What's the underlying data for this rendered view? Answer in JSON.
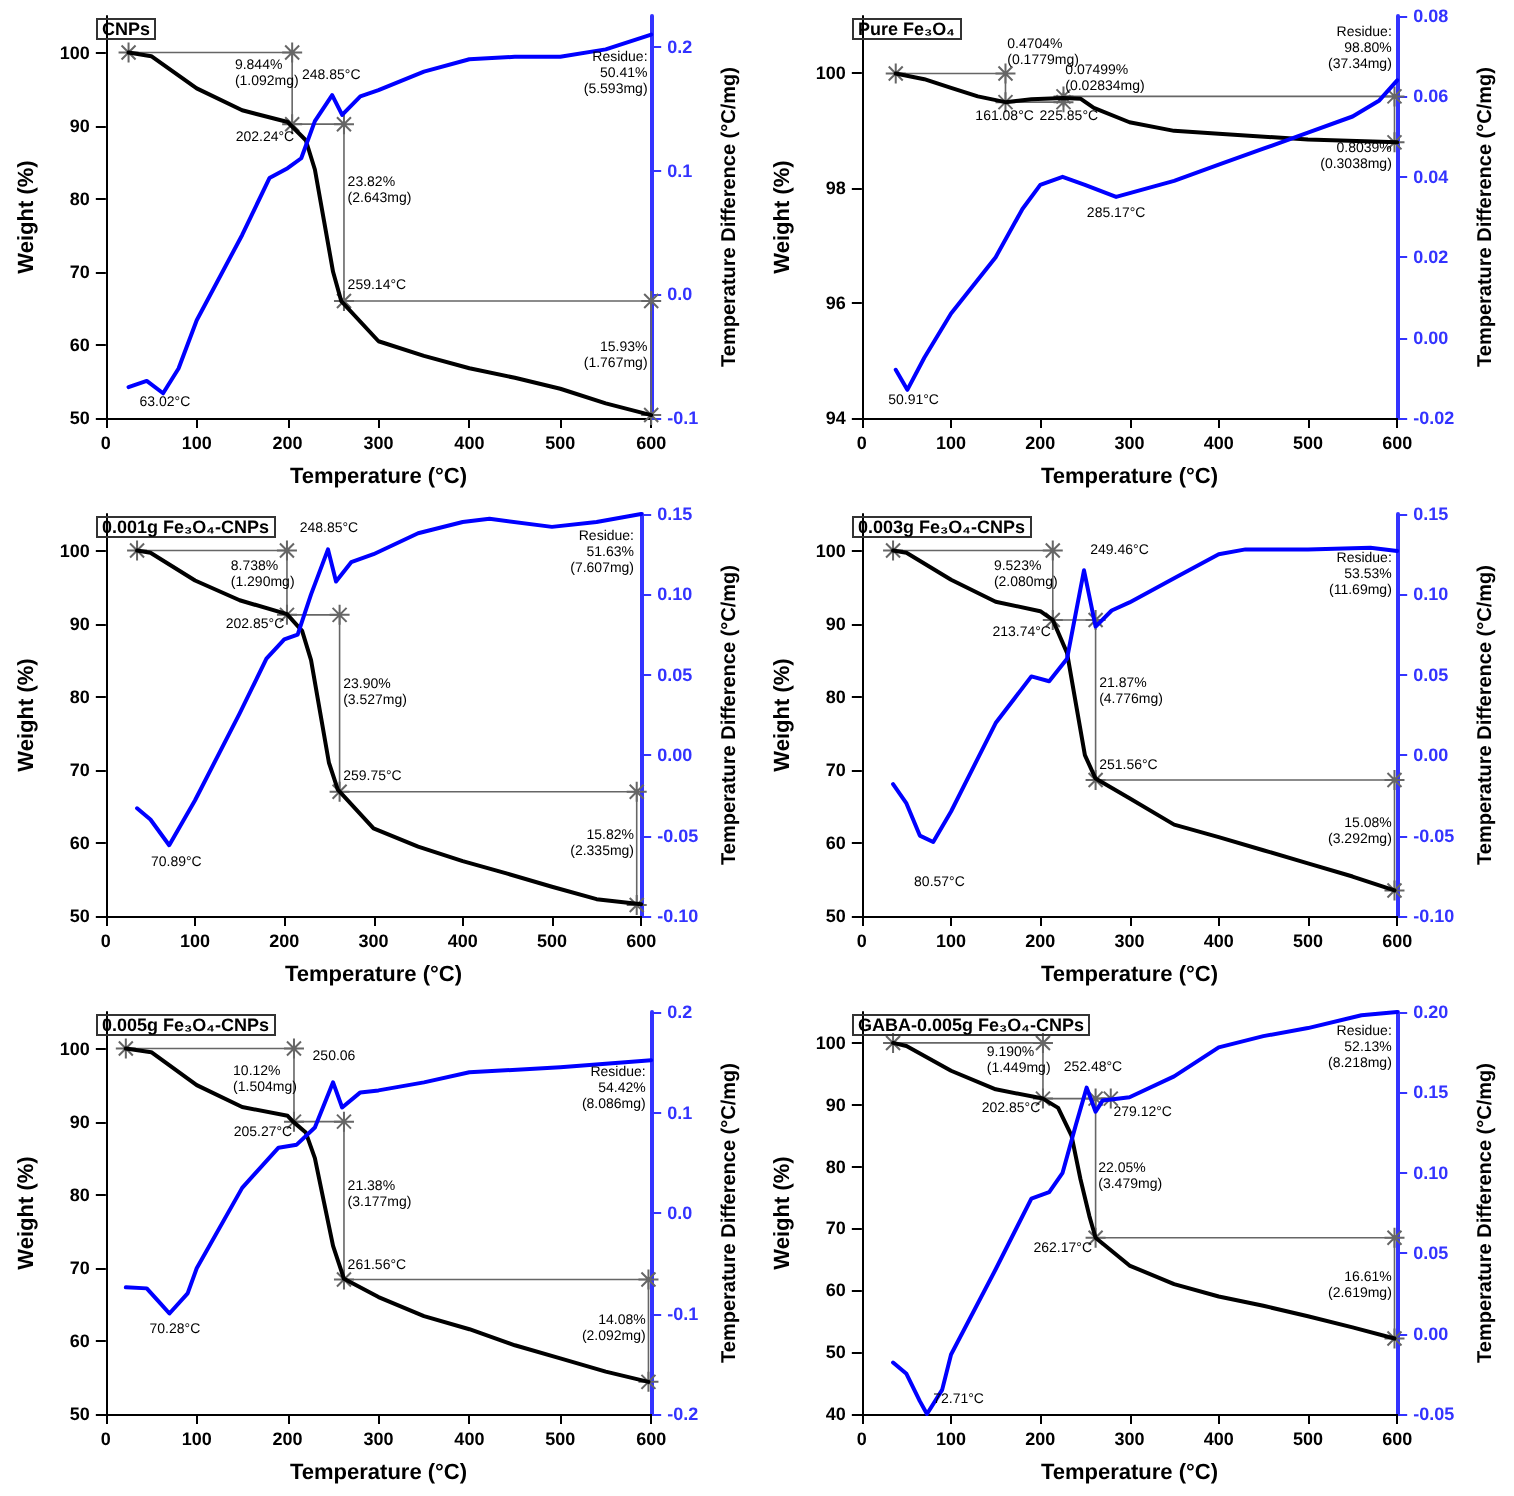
{
  "chart_data": [
    {
      "type": "line",
      "title": "CNPs",
      "xlabel": "Temperature (°C)",
      "ylabel": "Weight (%)",
      "y2label": "Temperature Difference (°C/mg)",
      "marker": "none",
      "xlim": [
        0,
        600
      ],
      "xticks": [
        0,
        100,
        200,
        300,
        400,
        500,
        600
      ],
      "ylim": [
        50,
        105
      ],
      "yticks": [
        50,
        60,
        70,
        80,
        90,
        100
      ],
      "y2lim": [
        -0.1,
        0.225
      ],
      "y2ticks": [
        {
          "value": -0.1,
          "label": "-0.1"
        },
        {
          "value": 0,
          "label": "0.0"
        },
        {
          "value": 0.1,
          "label": "0.1"
        },
        {
          "value": 0.2,
          "label": "0.2"
        }
      ],
      "series": [
        {
          "color": "#000000",
          "x": [
            25,
            50,
            100,
            150,
            200,
            220,
            230,
            240,
            250,
            259,
            300,
            350,
            400,
            450,
            500,
            550,
            600
          ],
          "values": [
            100,
            99.5,
            95.1,
            92.1,
            90.5,
            88,
            84,
            77,
            70,
            66,
            60.5,
            58.5,
            56.8,
            55.5,
            54,
            52,
            50.4
          ]
        },
        {
          "color": "#0000ff",
          "axis": "y2",
          "x": [
            25,
            45,
            63,
            80,
            100,
            150,
            180,
            200,
            215,
            230,
            249,
            260,
            280,
            300,
            350,
            400,
            450,
            500,
            550,
            600
          ],
          "values": [
            -0.075,
            -0.07,
            -0.08,
            -0.06,
            -0.021,
            0.048,
            0.094,
            0.102,
            0.11,
            0.14,
            0.161,
            0.145,
            0.16,
            0.165,
            0.18,
            0.19,
            0.192,
            0.192,
            0.198,
            0.21
          ]
        },
        {
          "color": "#666666",
          "marker": "cross",
          "x": [
            25,
            205,
            205,
            262,
            262,
            600,
            600
          ],
          "values": [
            100,
            100,
            90.2,
            90.2,
            66,
            66,
            50.4
          ]
        }
      ],
      "annotations": [
        "9.844%\n(1.092mg)",
        "202.24°C",
        "248.85°C",
        "23.82%\n(2.643mg)",
        "259.14°C",
        "15.93%\n(1.767mg)",
        "Residue:\n50.41%\n(5.593mg)",
        "63.02°C"
      ]
    },
    {
      "type": "line",
      "title": "Pure Fe₃O₄",
      "xlabel": "Temperature (°C)",
      "ylabel": "Weight (%)",
      "y2label": "Temperature Difference (°C/mg)",
      "marker": "none",
      "xlim": [
        0,
        600
      ],
      "xticks": [
        0,
        100,
        200,
        300,
        400,
        500,
        600
      ],
      "ylim": [
        94,
        101
      ],
      "yticks": [
        94,
        96,
        98,
        100
      ],
      "y2lim": [
        -0.02,
        0.08
      ],
      "y2ticks": [
        {
          "value": -0.02,
          "label": "-0.02"
        },
        {
          "value": 0,
          "label": "0.00"
        },
        {
          "value": 0.02,
          "label": "0.02"
        },
        {
          "value": 0.04,
          "label": "0.04"
        },
        {
          "value": 0.06,
          "label": "0.06"
        },
        {
          "value": 0.08,
          "label": "0.08"
        }
      ],
      "series": [
        {
          "color": "#000000",
          "x": [
            38,
            70,
            100,
            130,
            161,
            190,
            226,
            245,
            260,
            300,
            350,
            400,
            500,
            600
          ],
          "values": [
            100,
            99.9,
            99.75,
            99.6,
            99.5,
            99.55,
            99.57,
            99.56,
            99.4,
            99.15,
            99,
            98.95,
            98.85,
            98.8
          ]
        },
        {
          "color": "#0000ff",
          "axis": "y2",
          "x": [
            38,
            51,
            70,
            100,
            150,
            180,
            200,
            225,
            250,
            285,
            350,
            400,
            450,
            500,
            550,
            580,
            600
          ],
          "values": [
            -0.008,
            -0.013,
            -0.005,
            0.006,
            0.02,
            0.032,
            0.038,
            0.04,
            0.038,
            0.035,
            0.039,
            0.043,
            0.047,
            0.051,
            0.055,
            0.059,
            0.064
          ]
        },
        {
          "color": "#666666",
          "marker": "cross",
          "x": [
            38,
            161,
            161,
            226,
            226,
            597,
            597
          ],
          "values": [
            100,
            100,
            99.5,
            99.5,
            99.6,
            99.6,
            98.8
          ]
        }
      ],
      "annotations": [
        "0.4704%\n(0.1779mg)",
        "0.07499%\n(0.02834mg)",
        "161.08°C",
        "225.85°C",
        "285.17°C",
        "50.91°C",
        "Residue:\n98.80%\n(37.34mg)",
        "0.8039%\n(0.3038mg)"
      ]
    },
    {
      "type": "line",
      "title": "0.001g Fe₃O₄-CNPs",
      "xlabel": "Temperature (°C)",
      "ylabel": "Weight (%)",
      "y2label": "Temperature Difference (°C/mg)",
      "marker": "none",
      "xlim": [
        0,
        600
      ],
      "xticks": [
        0,
        100,
        200,
        300,
        400,
        500,
        600
      ],
      "ylim": [
        50,
        105
      ],
      "yticks": [
        50,
        60,
        70,
        80,
        90,
        100
      ],
      "y2lim": [
        -0.1,
        0.15
      ],
      "y2ticks": [
        {
          "value": -0.1,
          "label": "-0.10"
        },
        {
          "value": -0.05,
          "label": "-0.05"
        },
        {
          "value": 0,
          "label": "0.00"
        },
        {
          "value": 0.05,
          "label": "0.05"
        },
        {
          "value": 0.1,
          "label": "0.10"
        },
        {
          "value": 0.15,
          "label": "0.15"
        }
      ],
      "series": [
        {
          "color": "#000000",
          "x": [
            35,
            50,
            100,
            150,
            203,
            220,
            230,
            240,
            250,
            260,
            300,
            350,
            400,
            450,
            500,
            550,
            600
          ],
          "values": [
            100,
            99.7,
            95.9,
            93.2,
            91.3,
            89,
            85,
            78,
            71,
            67.3,
            62,
            59.5,
            57.5,
            55.8,
            54,
            52.3,
            51.6
          ]
        },
        {
          "color": "#0000ff",
          "axis": "y2",
          "x": [
            35,
            50,
            71,
            100,
            150,
            180,
            200,
            215,
            230,
            249,
            258,
            275,
            300,
            350,
            400,
            430,
            500,
            550,
            600
          ],
          "values": [
            -0.033,
            -0.04,
            -0.056,
            -0.028,
            0.026,
            0.06,
            0.072,
            0.075,
            0.1,
            0.128,
            0.108,
            0.12,
            0.125,
            0.138,
            0.145,
            0.147,
            0.142,
            0.145,
            0.15
          ]
        },
        {
          "color": "#666666",
          "marker": "cross",
          "x": [
            35,
            203,
            203,
            262,
            262,
            595,
            595
          ],
          "values": [
            100,
            100,
            91.2,
            91.2,
            67,
            67,
            51.5
          ]
        }
      ],
      "annotations": [
        "8.738%\n(1.290mg)",
        "202.85°C",
        "248.85°C",
        "23.90%\n(3.527mg)",
        "259.75°C",
        "15.82%\n(2.335mg)",
        "Residue:\n51.63%\n(7.607mg)",
        "70.89°C"
      ]
    },
    {
      "type": "line",
      "title": "0.003g Fe₃O₄-CNPs",
      "xlabel": "Temperature (°C)",
      "ylabel": "Weight (%)",
      "y2label": "Temperature Difference (°C/mg)",
      "marker": "none",
      "xlim": [
        0,
        600
      ],
      "xticks": [
        0,
        100,
        200,
        300,
        400,
        500,
        600
      ],
      "ylim": [
        50,
        105
      ],
      "yticks": [
        50,
        60,
        70,
        80,
        90,
        100
      ],
      "y2lim": [
        -0.1,
        0.15
      ],
      "y2ticks": [
        {
          "value": -0.1,
          "label": "-0.10"
        },
        {
          "value": -0.05,
          "label": "-0.05"
        },
        {
          "value": 0,
          "label": "0.00"
        },
        {
          "value": 0.05,
          "label": "0.05"
        },
        {
          "value": 0.1,
          "label": "0.10"
        },
        {
          "value": 0.15,
          "label": "0.15"
        }
      ],
      "series": [
        {
          "color": "#000000",
          "x": [
            35,
            50,
            100,
            150,
            200,
            214,
            230,
            240,
            250,
            262,
            300,
            350,
            400,
            450,
            500,
            550,
            597
          ],
          "values": [
            100,
            99.7,
            96,
            93,
            91.7,
            90.5,
            86,
            79,
            72,
            68.8,
            66.1,
            62.5,
            60.8,
            59,
            57.2,
            55.4,
            53.5
          ]
        },
        {
          "color": "#0000ff",
          "axis": "y2",
          "x": [
            35,
            50,
            65,
            80,
            100,
            150,
            190,
            210,
            230,
            249,
            262,
            280,
            300,
            350,
            400,
            430,
            500,
            570,
            600
          ],
          "values": [
            -0.018,
            -0.03,
            -0.05,
            -0.054,
            -0.035,
            0.02,
            0.049,
            0.046,
            0.06,
            0.115,
            0.08,
            0.09,
            0.095,
            0.11,
            0.125,
            0.128,
            0.128,
            0.129,
            0.127
          ]
        },
        {
          "color": "#666666",
          "marker": "cross",
          "x": [
            35,
            214,
            214,
            262,
            262,
            597,
            597
          ],
          "values": [
            100,
            100,
            90.5,
            90.5,
            68.6,
            68.6,
            53.5
          ]
        }
      ],
      "annotations": [
        "9.523%\n(2.080mg)",
        "213.74°C",
        "249.46°C",
        "21.87%\n(4.776mg)",
        "251.56°C",
        "15.08%\n(3.292mg)",
        "Residue:\n53.53%\n(11.69mg)",
        "80.57°C"
      ]
    },
    {
      "type": "line",
      "title": "0.005g Fe₃O₄-CNPs",
      "xlabel": "Temperature (°C)",
      "ylabel": "Weight (%)",
      "y2label": "Temperature Difference (°C/mg)",
      "marker": "none",
      "xlim": [
        0,
        600
      ],
      "xticks": [
        0,
        100,
        200,
        300,
        400,
        500,
        600
      ],
      "ylim": [
        50,
        105
      ],
      "yticks": [
        50,
        60,
        70,
        80,
        90,
        100
      ],
      "y2lim": [
        -0.2,
        0.2
      ],
      "y2ticks": [
        {
          "value": -0.2,
          "label": "-0.2"
        },
        {
          "value": -0.1,
          "label": "-0.1"
        },
        {
          "value": 0,
          "label": "0.0"
        },
        {
          "value": 0.1,
          "label": "0.1"
        },
        {
          "value": 0.2,
          "label": "0.2"
        }
      ],
      "series": [
        {
          "color": "#000000",
          "x": [
            22,
            50,
            100,
            150,
            200,
            206,
            220,
            230,
            240,
            250,
            262,
            300,
            350,
            400,
            450,
            500,
            550,
            597
          ],
          "values": [
            100,
            99.5,
            95,
            92,
            90.8,
            90,
            88.5,
            85,
            79,
            73,
            68.5,
            66,
            63.4,
            61.6,
            59.4,
            57.6,
            55.8,
            54.4
          ]
        },
        {
          "color": "#0000ff",
          "axis": "y2",
          "x": [
            22,
            45,
            60,
            70,
            90,
            100,
            150,
            190,
            210,
            230,
            250,
            260,
            280,
            300,
            350,
            400,
            500,
            600
          ],
          "values": [
            -0.074,
            -0.075,
            -0.09,
            -0.1,
            -0.08,
            -0.055,
            0.025,
            0.065,
            0.068,
            0.085,
            0.13,
            0.105,
            0.12,
            0.122,
            0.13,
            0.14,
            0.145,
            0.152
          ]
        },
        {
          "color": "#666666",
          "marker": "cross",
          "x": [
            22,
            207,
            207,
            262,
            262,
            597,
            597
          ],
          "values": [
            100,
            100,
            90,
            90,
            68.4,
            68.4,
            54.4
          ]
        }
      ],
      "annotations": [
        "10.12%\n(1.504mg)",
        "205.27°C",
        "250.06",
        "21.38%\n(3.177mg)",
        "261.56°C",
        "14.08%\n(2.092mg)",
        "Residue:\n54.42%\n(8.086mg)",
        "70.28°C"
      ]
    },
    {
      "type": "line",
      "title": "GABA-0.005g Fe₃O₄-CNPs",
      "xlabel": "Temperature (°C)",
      "ylabel": "Weight (%)",
      "y2label": "Temperature Difference (°C/mg)",
      "marker": "none",
      "xlim": [
        0,
        600
      ],
      "xticks": [
        0,
        100,
        200,
        300,
        400,
        500,
        600
      ],
      "ylim": [
        40,
        105
      ],
      "yticks": [
        40,
        50,
        60,
        70,
        80,
        90,
        100
      ],
      "y2lim": [
        -0.05,
        0.2
      ],
      "y2ticks": [
        {
          "value": -0.05,
          "label": "-0.05"
        },
        {
          "value": 0,
          "label": "0.00"
        },
        {
          "value": 0.05,
          "label": "0.05"
        },
        {
          "value": 0.1,
          "label": "0.10"
        },
        {
          "value": 0.15,
          "label": "0.15"
        },
        {
          "value": 0.2,
          "label": "0.20"
        }
      ],
      "series": [
        {
          "color": "#000000",
          "x": [
            35,
            50,
            100,
            150,
            203,
            220,
            235,
            245,
            255,
            262,
            300,
            350,
            400,
            450,
            500,
            550,
            597
          ],
          "values": [
            100,
            99.5,
            95.5,
            92.5,
            91,
            89.5,
            85,
            78,
            72,
            68.5,
            64,
            61,
            59,
            57.5,
            55.8,
            54,
            52.2
          ]
        },
        {
          "color": "#0000ff",
          "axis": "y2",
          "x": [
            35,
            50,
            65,
            73,
            90,
            100,
            150,
            190,
            210,
            225,
            240,
            252,
            262,
            270,
            300,
            350,
            400,
            450,
            500,
            560,
            600
          ],
          "values": [
            -0.018,
            -0.025,
            -0.042,
            -0.05,
            -0.035,
            -0.013,
            0.04,
            0.084,
            0.088,
            0.1,
            0.13,
            0.153,
            0.138,
            0.145,
            0.147,
            0.16,
            0.178,
            0.185,
            0.19,
            0.198,
            0.2
          ]
        },
        {
          "color": "#666666",
          "marker": "cross",
          "x": [
            35,
            203,
            203,
            279,
            262,
            262,
            597,
            597
          ],
          "values": [
            100,
            100,
            91,
            91,
            91,
            68.5,
            68.5,
            52.2
          ]
        }
      ],
      "annotations": [
        "9.190%\n(1.449mg)",
        "202.85°C",
        "252.48°C",
        "279.12°C",
        "22.05%\n(3.479mg)",
        "262.17°C",
        "16.61%\n(2.619mg)",
        "Residue:\n52.13%\n(8.218mg)",
        "72.71°C"
      ]
    }
  ]
}
